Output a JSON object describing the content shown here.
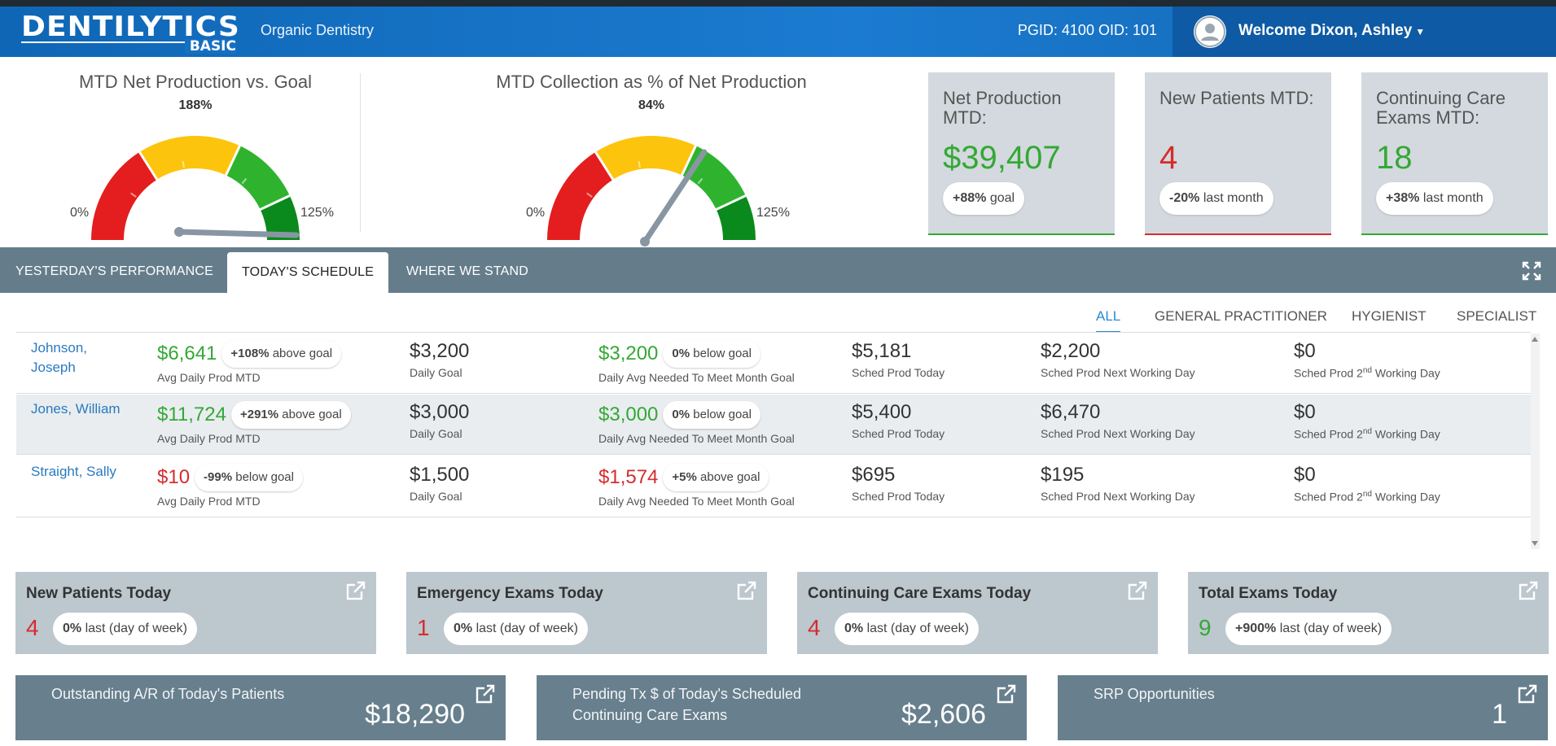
{
  "header": {
    "logo_main": "DENTILYTICS",
    "logo_sub": "BASIC",
    "practice": "Organic Dentistry",
    "pgid": "PGID: 4100 OID: 101",
    "welcome": "Welcome Dixon, Ashley"
  },
  "gauges": [
    {
      "title": "MTD Net Production vs. Goal",
      "pct_label": "188%",
      "min_label": "0%",
      "max_label": "125%",
      "value_pct": 188,
      "min": 0,
      "max": 125
    },
    {
      "title": "MTD Collection as % of Net Production",
      "pct_label": "84%",
      "min_label": "0%",
      "max_label": "125%",
      "value_pct": 84,
      "min": 0,
      "max": 125
    }
  ],
  "kpis": [
    {
      "title": "Net Production MTD:",
      "value": "$39,407",
      "pill_bold": "+88%",
      "pill_text": "goal",
      "color": "#34a835"
    },
    {
      "title": "New Patients MTD:",
      "value": "4",
      "pill_bold": "-20%",
      "pill_text": "last month",
      "color": "#d52d2d"
    },
    {
      "title": "Continuing Care Exams MTD:",
      "value": "18",
      "pill_bold": "+38%",
      "pill_text": "last month",
      "color": "#34a835"
    }
  ],
  "tabs": [
    "YESTERDAY'S PERFORMANCE",
    "TODAY'S SCHEDULE",
    "WHERE WE STAND"
  ],
  "subtabs": [
    "ALL",
    "GENERAL PRACTITIONER",
    "HYGIENIST",
    "SPECIALIST"
  ],
  "labels": {
    "avg_daily": "Avg Daily Prod MTD",
    "daily_goal": "Daily Goal",
    "needed": "Daily Avg Needed To Meet Month Goal",
    "sched_today": "Sched Prod Today",
    "sched_next": "Sched Prod Next Working Day",
    "sched_2nd_pre": "Sched Prod 2",
    "sched_2nd_sup": "nd",
    "sched_2nd_post": " Working Day"
  },
  "providers": [
    {
      "name": "Johnson, Joseph",
      "avg": "$6,641",
      "avg_pill_bold": "+108%",
      "avg_pill_text": "above goal",
      "avg_color": "green",
      "goal": "$3,200",
      "needed": "$3,200",
      "needed_pill_bold": "0%",
      "needed_pill_text": "below goal",
      "needed_color": "green",
      "sched_today": "$5,181",
      "sched_next": "$2,200",
      "sched_2nd": "$0"
    },
    {
      "name": "Jones, William",
      "avg": "$11,724",
      "avg_pill_bold": "+291%",
      "avg_pill_text": "above goal",
      "avg_color": "green",
      "goal": "$3,000",
      "needed": "$3,000",
      "needed_pill_bold": "0%",
      "needed_pill_text": "below goal",
      "needed_color": "green",
      "sched_today": "$5,400",
      "sched_next": "$6,470",
      "sched_2nd": "$0"
    },
    {
      "name": "Straight, Sally",
      "avg": "$10",
      "avg_pill_bold": "-99%",
      "avg_pill_text": "below goal",
      "avg_color": "red",
      "goal": "$1,500",
      "needed": "$1,574",
      "needed_pill_bold": "+5%",
      "needed_pill_text": "above goal",
      "needed_color": "red",
      "sched_today": "$695",
      "sched_next": "$195",
      "sched_2nd": "$0"
    }
  ],
  "stats": [
    {
      "title": "New Patients Today",
      "value": "4",
      "pill_bold": "0%",
      "pill_text": "last (day of week)",
      "color": "#d52d2d"
    },
    {
      "title": "Emergency Exams Today",
      "value": "1",
      "pill_bold": "0%",
      "pill_text": "last (day of week)",
      "color": "#d52d2d"
    },
    {
      "title": "Continuing Care Exams Today",
      "value": "4",
      "pill_bold": "0%",
      "pill_text": "last (day of week)",
      "color": "#d52d2d"
    },
    {
      "title": "Total Exams Today",
      "value": "9",
      "pill_bold": "+900%",
      "pill_text": "last (day of week)",
      "color": "#34a835"
    }
  ],
  "bigstats": [
    {
      "title": "Outstanding A/R of Today's Patients",
      "value": "$18,290"
    },
    {
      "title": "Pending Tx $ of Today's Scheduled Continuing Care Exams",
      "value": "$2,606"
    },
    {
      "title": "SRP Opportunities",
      "value": "1"
    }
  ]
}
